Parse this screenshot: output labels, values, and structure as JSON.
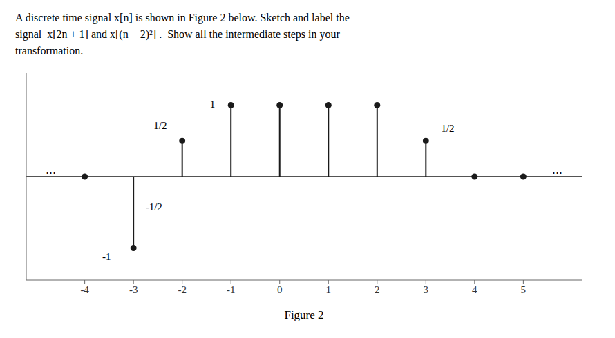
{
  "chart_data": {
    "type": "stem",
    "title": "A discrete time signal x[n] is shown in Figure 2 below. Sketch and label the\nsignal  x[2n + 1] and x[(n − 2)²] .  Show all the intermediate steps in your\ntransformation.",
    "xlabel": "Figure 2",
    "x": [
      -4,
      -3,
      -2,
      -1,
      0,
      1,
      2,
      3,
      4,
      5
    ],
    "values": [
      0,
      -1,
      0.5,
      1,
      1,
      1,
      1,
      0.5,
      0,
      0
    ],
    "color": "#1a1a1a",
    "xlim": [
      -5.2,
      6.2
    ],
    "ylim": [
      -1.45,
      1.45
    ],
    "xticks": [
      -4,
      -3,
      -2,
      -1,
      0,
      1,
      2,
      3,
      4,
      5
    ],
    "tick_labels": "x",
    "annotations": [
      {
        "text": "⋯",
        "x": -4.7,
        "y": 0.06
      },
      {
        "text": "⋯",
        "x": 5.7,
        "y": 0.06
      },
      {
        "text": "1/2",
        "x": -2.45,
        "y": 0.72
      },
      {
        "text": "1",
        "x": -1.38,
        "y": 1.02
      },
      {
        "text": "1/2",
        "x": 3.45,
        "y": 0.68
      },
      {
        "text": "-1/2",
        "x": -2.58,
        "y": -0.42
      },
      {
        "text": "-1",
        "x": -3.55,
        "y": -1.12
      }
    ]
  }
}
